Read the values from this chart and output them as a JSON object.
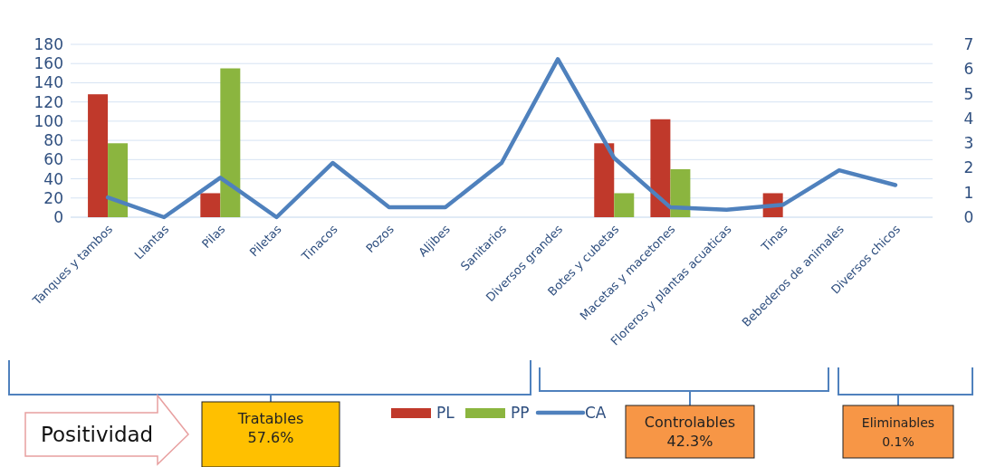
{
  "chart_data": {
    "type": "bar",
    "categories": [
      "Tanques y tambos",
      "Llantas",
      "Pilas",
      "Piletas",
      "Tinacos",
      "Pozos",
      "Aljibes",
      "Sanitarios",
      "Diversos grandes",
      "Botes y cubetas",
      "Macetas y macetones",
      "Floreros y plantas acuaticas",
      "Tinas",
      "Bebederos de animales",
      "Diversos chicos"
    ],
    "series": [
      {
        "name": "PL",
        "color": "#c0392b",
        "values": [
          128,
          null,
          25,
          null,
          null,
          null,
          null,
          null,
          null,
          77,
          102,
          null,
          25,
          null,
          null
        ]
      },
      {
        "name": "PP",
        "color": "#8bb53f",
        "values": [
          77,
          null,
          155,
          null,
          null,
          null,
          null,
          null,
          null,
          25,
          50,
          null,
          null,
          null,
          null
        ]
      },
      {
        "name": "CA",
        "type": "line",
        "axis": "y2",
        "color": "#4f81bd",
        "values": [
          0.8,
          0,
          1.6,
          0,
          2.2,
          0.4,
          0.4,
          2.2,
          6.4,
          2.4,
          0.4,
          0.3,
          0.5,
          1.9,
          1.3
        ]
      }
    ],
    "ylim": [
      0,
      180
    ],
    "yticks": [
      0,
      20,
      40,
      60,
      80,
      100,
      120,
      140,
      160,
      180
    ],
    "y2lim": [
      0,
      7
    ],
    "y2ticks": [
      0,
      1,
      2,
      3,
      4,
      5,
      6,
      7
    ],
    "grid": "y",
    "legend": "bottom",
    "marker": "none",
    "line_style": "solid",
    "annotations": [
      "Positividad",
      "Tratables 57.6%",
      "Controlables 42.3%",
      "Eliminables 0.1%"
    ]
  }
}
